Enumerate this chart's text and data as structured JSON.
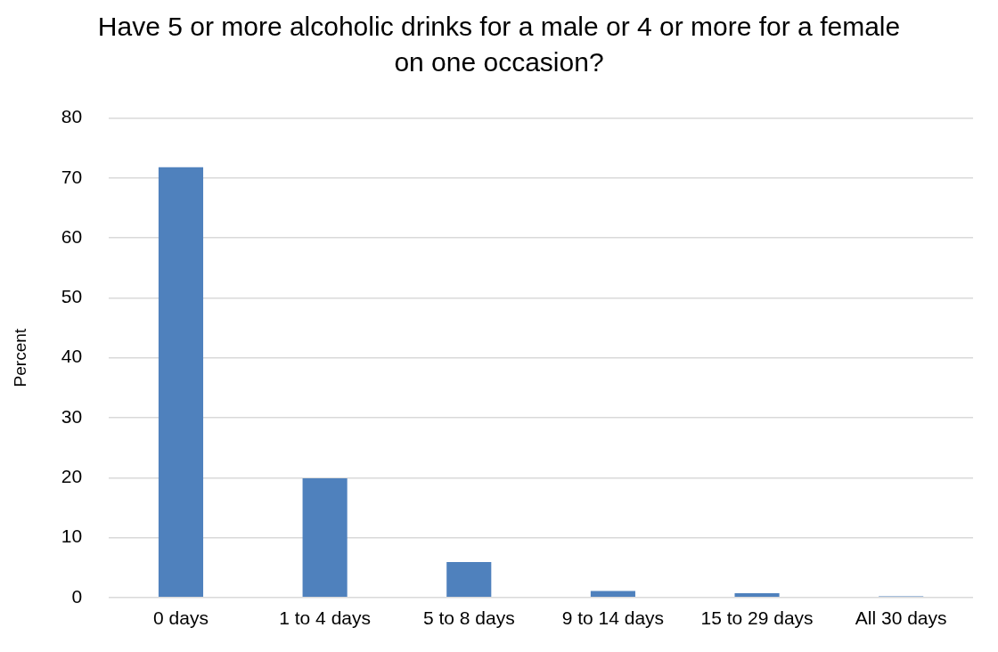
{
  "chart_data": {
    "type": "bar",
    "title": "Have 5 or more alcoholic drinks for a male or 4 or more for a female on one occasion?",
    "ylabel": "Percent",
    "categories": [
      "0 days",
      "1 to 4 days",
      "5 to 8 days",
      "9 to 14 days",
      "15 to 29 days",
      "All 30 days"
    ],
    "values": [
      71.8,
      19.9,
      5.9,
      1.1,
      0.7,
      0.2
    ],
    "color": "#4f81bd",
    "ylim": [
      0,
      80
    ],
    "yticks": [
      0,
      10,
      20,
      30,
      40,
      50,
      60,
      70,
      80
    ],
    "grid": "y",
    "legend": false
  }
}
